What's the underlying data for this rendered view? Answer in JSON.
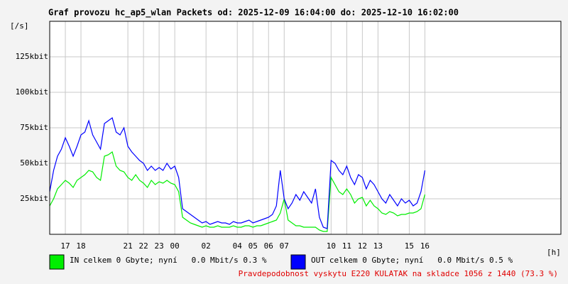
{
  "chart_data": {
    "type": "line",
    "title": "Graf provozu hc_ap5_wlan Packets od: 2025-12-09 16:04:00 do: 2025-12-10 16:02:00",
    "y_unit": "[/s]",
    "x_unit": "[h]",
    "footer": "Pravdepodobnost vyskytu E220 KULATAK na skladce 1056 z 1440 (73.3 %)",
    "grid": true,
    "xlim": [
      0,
      32.7
    ],
    "xticks": [
      {
        "value": 1,
        "label": "17"
      },
      {
        "value": 2,
        "label": "18"
      },
      {
        "value": 5,
        "label": "21"
      },
      {
        "value": 6,
        "label": "22"
      },
      {
        "value": 7,
        "label": "23"
      },
      {
        "value": 8,
        "label": "00"
      },
      {
        "value": 10,
        "label": "02"
      },
      {
        "value": 12,
        "label": "04"
      },
      {
        "value": 13,
        "label": "05"
      },
      {
        "value": 14,
        "label": "06"
      },
      {
        "value": 15,
        "label": "07"
      },
      {
        "value": 18,
        "label": "10"
      },
      {
        "value": 19,
        "label": "11"
      },
      {
        "value": 20,
        "label": "12"
      },
      {
        "value": 21,
        "label": "13"
      },
      {
        "value": 23,
        "label": "15"
      },
      {
        "value": 24,
        "label": "16"
      }
    ],
    "ylim": [
      0,
      150
    ],
    "yticks": [
      {
        "value": 25,
        "label": "25kbit"
      },
      {
        "value": 50,
        "label": "50kbit"
      },
      {
        "value": 75,
        "label": "75kbit"
      },
      {
        "value": 100,
        "label": "100kbit"
      },
      {
        "value": 125,
        "label": "125kbit"
      }
    ],
    "x": [
      0,
      0.25,
      0.5,
      0.75,
      1,
      1.25,
      1.5,
      1.75,
      2,
      2.25,
      2.5,
      2.75,
      3,
      3.25,
      3.5,
      3.75,
      4,
      4.25,
      4.5,
      4.75,
      5,
      5.25,
      5.5,
      5.75,
      6,
      6.25,
      6.5,
      6.75,
      7,
      7.25,
      7.5,
      7.75,
      8,
      8.25,
      8.5,
      8.75,
      9,
      9.25,
      9.5,
      9.75,
      10,
      10.25,
      10.5,
      10.75,
      11,
      11.25,
      11.5,
      11.75,
      12,
      12.25,
      12.5,
      12.75,
      13,
      13.25,
      13.5,
      13.75,
      14,
      14.25,
      14.5,
      14.75,
      15,
      15.25,
      15.5,
      15.75,
      16,
      16.25,
      16.5,
      16.75,
      17,
      17.25,
      17.5,
      17.75,
      18,
      18.25,
      18.5,
      18.75,
      19,
      19.25,
      19.5,
      19.75,
      20,
      20.25,
      20.5,
      20.75,
      21,
      21.25,
      21.5,
      21.75,
      22,
      22.25,
      22.5,
      22.75,
      23,
      23.25,
      23.5,
      23.75,
      24
    ],
    "series": [
      {
        "name": "IN",
        "legend_text": "celkem 0 Gbyte; nyní   0.0 Mbit/s 0.3 %",
        "color": "#00ee00",
        "values": [
          20,
          25,
          32,
          35,
          38,
          36,
          33,
          38,
          40,
          42,
          45,
          44,
          40,
          38,
          55,
          56,
          58,
          48,
          45,
          44,
          40,
          38,
          42,
          38,
          36,
          33,
          38,
          35,
          37,
          36,
          38,
          36,
          35,
          30,
          12,
          10,
          8,
          7,
          6,
          5,
          6,
          5,
          5,
          6,
          5,
          5,
          5,
          6,
          5,
          5,
          6,
          6,
          5,
          6,
          6,
          7,
          8,
          9,
          10,
          15,
          25,
          10,
          8,
          6,
          6,
          5,
          5,
          5,
          5,
          3,
          2,
          2,
          40,
          35,
          30,
          28,
          32,
          28,
          22,
          25,
          26,
          20,
          24,
          20,
          18,
          15,
          14,
          16,
          15,
          13,
          14,
          14,
          15,
          15,
          16,
          18,
          28
        ]
      },
      {
        "name": "OUT",
        "legend_text": "celkem 0 Gbyte; nyní   0.0 Mbit/s 0.5 %",
        "color": "#0000ff",
        "values": [
          30,
          45,
          55,
          60,
          68,
          62,
          55,
          62,
          70,
          72,
          80,
          70,
          65,
          60,
          78,
          80,
          82,
          72,
          70,
          75,
          62,
          58,
          55,
          52,
          50,
          45,
          48,
          45,
          47,
          45,
          50,
          46,
          48,
          40,
          18,
          16,
          14,
          12,
          10,
          8,
          9,
          7,
          8,
          9,
          8,
          8,
          7,
          9,
          8,
          8,
          9,
          10,
          8,
          9,
          10,
          11,
          12,
          14,
          20,
          45,
          25,
          18,
          22,
          28,
          24,
          30,
          26,
          22,
          32,
          12,
          5,
          4,
          52,
          50,
          45,
          42,
          48,
          40,
          35,
          42,
          40,
          32,
          38,
          35,
          30,
          25,
          22,
          28,
          24,
          20,
          25,
          22,
          24,
          20,
          22,
          30,
          45
        ]
      }
    ]
  }
}
